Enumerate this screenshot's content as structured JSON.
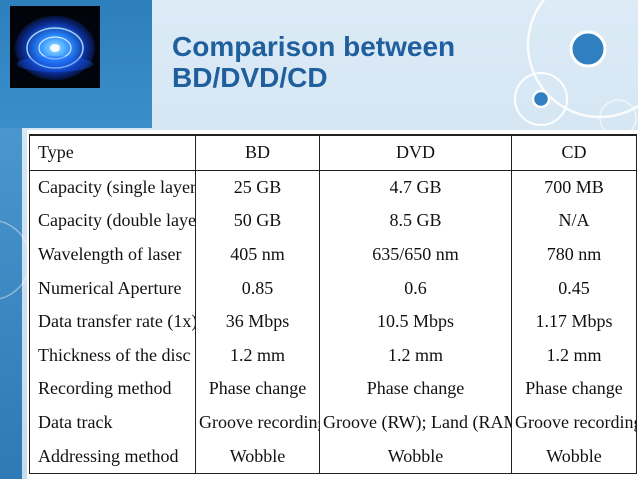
{
  "slide": {
    "title_line1": "Comparison between",
    "title_line2": "BD/DVD/CD"
  },
  "colors": {
    "title": "#1f5f9e",
    "accent_blue": "#2d7fbc",
    "background": "#d5e5f2"
  },
  "table": {
    "headers": [
      "Type",
      "BD",
      "DVD",
      "CD"
    ],
    "rows": [
      [
        "Capacity (single layer)",
        "25 GB",
        "4.7 GB",
        "700 MB"
      ],
      [
        "Capacity (double layer)",
        "50 GB",
        "8.5 GB",
        "N/A"
      ],
      [
        "Wavelength of laser",
        "405 nm",
        "635/650 nm",
        "780 nm"
      ],
      [
        "Numerical Aperture",
        "0.85",
        "0.6",
        "0.45"
      ],
      [
        "Data transfer rate (1x)",
        "36 Mbps",
        "10.5 Mbps",
        "1.17 Mbps"
      ],
      [
        "Thickness of the disc",
        "1.2 mm",
        "1.2 mm",
        "1.2 mm"
      ],
      [
        "Recording method",
        "Phase change",
        "Phase change",
        "Phase change"
      ],
      [
        "Data track",
        "Groove recording",
        "Groove (RW); Land (RAM)",
        "Groove recording"
      ],
      [
        "Addressing method",
        "Wobble",
        "Wobble",
        "Wobble"
      ]
    ]
  }
}
